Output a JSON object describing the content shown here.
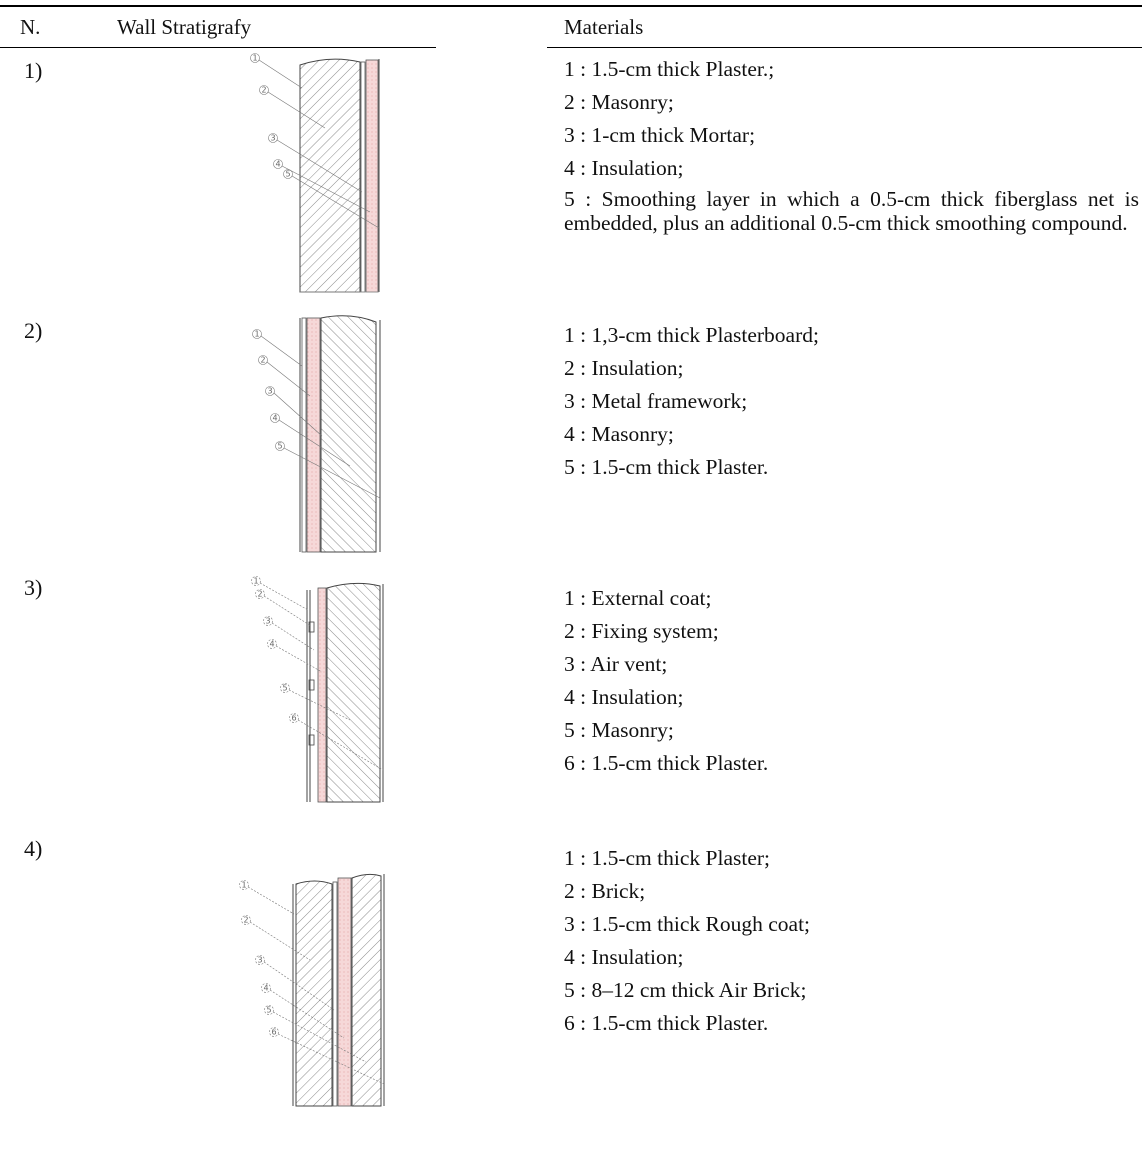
{
  "header": {
    "n": "N.",
    "stratigraphy": "Wall Stratigrafy",
    "materials": "Materials"
  },
  "colors": {
    "insulation": "#f6d8d8",
    "hatch": "#8a8a8a",
    "rule": "#000000"
  },
  "rows": [
    {
      "number": "1)",
      "figure": "wall-1-external-insulation-icon",
      "materials": [
        "1 : 1.5-cm thick Plaster.;",
        "2 : Masonry;",
        "3 : 1-cm thick Mortar;",
        "4 : Insulation;",
        "5 : Smoothing layer in which a 0.5-cm thick fiberglass net is embedded, plus an additional 0.5-cm thick smoothing compound."
      ]
    },
    {
      "number": "2)",
      "figure": "wall-2-internal-insulation-icon",
      "materials": [
        "1 : 1,3-cm thick Plasterboard;",
        "2 : Insulation;",
        "3 : Metal framework;",
        "4 : Masonry;",
        "5 : 1.5-cm thick Plaster."
      ]
    },
    {
      "number": "3)",
      "figure": "wall-3-ventilated-facade-icon",
      "materials": [
        "1 : External coat;",
        "2 : Fixing system;",
        "3 : Air vent;",
        "4 : Insulation;",
        "5 : Masonry;",
        "6 : 1.5-cm thick Plaster."
      ]
    },
    {
      "number": "4)",
      "figure": "wall-4-cavity-insulation-icon",
      "materials": [
        "1 : 1.5-cm thick Plaster;",
        "2 : Brick;",
        "3 : 1.5-cm thick Rough coat;",
        "4 : Insulation;",
        "5 : 8–12 cm thick Air Brick;",
        "6 : 1.5-cm thick Plaster."
      ]
    }
  ]
}
